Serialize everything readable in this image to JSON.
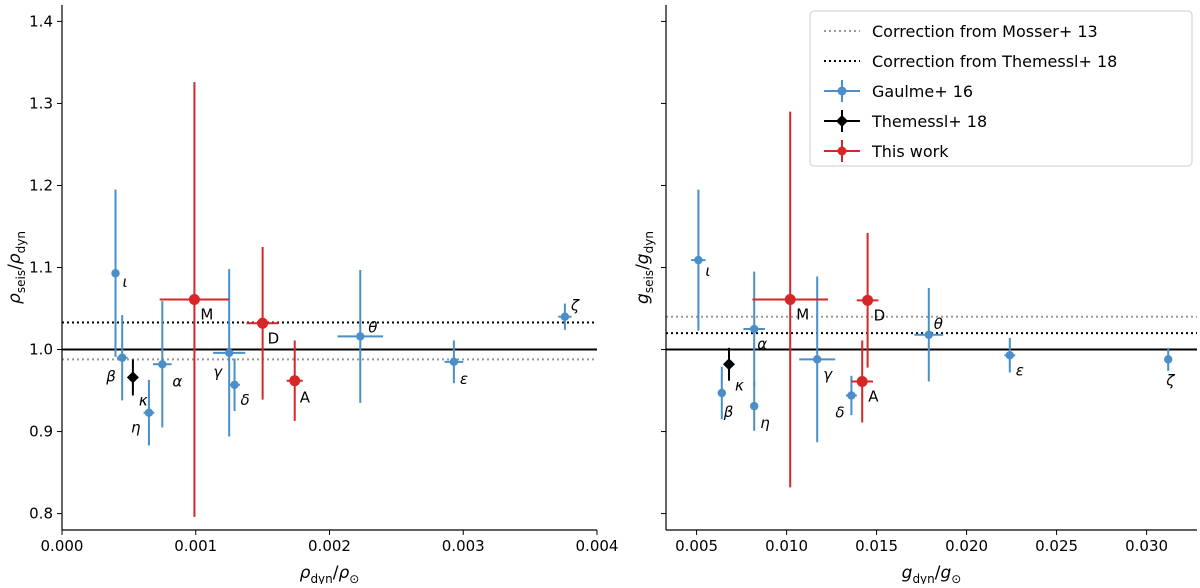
{
  "chart_data": [
    {
      "type": "scatter",
      "xlabel": "ρ_dyn/ρ_⊙",
      "ylabel": "ρ_seis/ρ_dyn",
      "xlim": [
        0.0,
        0.004
      ],
      "ylim": [
        0.78,
        1.42
      ],
      "xticks": [
        0.0,
        0.001,
        0.002,
        0.003,
        0.004
      ],
      "xtick_labels": [
        "0.000",
        "0.001",
        "0.002",
        "0.003",
        "0.004"
      ],
      "yticks": [
        0.8,
        0.9,
        1.0,
        1.1,
        1.2,
        1.3,
        1.4
      ],
      "ytick_labels": [
        "0.8",
        "0.9",
        "1.0",
        "1.1",
        "1.2",
        "1.3",
        "1.4"
      ],
      "reference_lines": [
        {
          "name": "Correction from Mosser+ 13",
          "y": 0.988,
          "color": "#999999",
          "style": "dotted"
        },
        {
          "name": "Correction from Themessl+ 18",
          "y": 1.033,
          "color": "#000000",
          "style": "dotted"
        },
        {
          "name": "unity",
          "y": 1.0,
          "color": "#000000",
          "style": "solid"
        }
      ],
      "series": [
        {
          "name": "Gaulme+ 16",
          "color": "#4a8fc9",
          "marker": "circle",
          "points": [
            {
              "label": "ι",
              "x": 0.0004,
              "xerr": 3e-05,
              "y": 1.093,
              "yerr": 0.102,
              "label_dx": 7,
              "label_dy": 14
            },
            {
              "label": "β",
              "x": 0.00045,
              "xerr": 4e-05,
              "y": 0.99,
              "yerr": 0.052,
              "label_dx": -16,
              "label_dy": 24
            },
            {
              "label": "α",
              "x": 0.00075,
              "xerr": 7e-05,
              "y": 0.982,
              "yerr": 0.077,
              "label_dx": 10,
              "label_dy": 22
            },
            {
              "label": "η",
              "x": 0.00065,
              "xerr": 4e-05,
              "y": 0.923,
              "yerr": 0.04,
              "label_dx": -18,
              "label_dy": 20
            },
            {
              "label": "γ",
              "x": 0.00125,
              "xerr": 0.00012,
              "y": 0.996,
              "yerr": 0.102,
              "label_dx": -16,
              "label_dy": 24
            },
            {
              "label": "δ",
              "x": 0.00129,
              "xerr": 4e-05,
              "y": 0.957,
              "yerr": 0.032,
              "label_dx": 6,
              "label_dy": 20
            },
            {
              "label": "θ",
              "x": 0.00223,
              "xerr": 0.00017,
              "y": 1.016,
              "yerr": 0.081,
              "label_dx": 8,
              "label_dy": -4
            },
            {
              "label": "ε",
              "x": 0.00293,
              "xerr": 7e-05,
              "y": 0.985,
              "yerr": 0.026,
              "label_dx": 6,
              "label_dy": 22
            },
            {
              "label": "ζ",
              "x": 0.00376,
              "xerr": 5e-05,
              "y": 1.04,
              "yerr": 0.016,
              "label_dx": 6,
              "label_dy": -6
            }
          ]
        },
        {
          "name": "Themessl+ 18",
          "color": "#000000",
          "marker": "diamond",
          "points": [
            {
              "label": "κ",
              "x": 0.00053,
              "xerr": 1e-05,
              "y": 0.966,
              "yerr": 0.022,
              "label_dx": 6,
              "label_dy": 28
            }
          ]
        },
        {
          "name": "This work",
          "color": "#d62728",
          "marker": "circle",
          "points": [
            {
              "label": "M",
              "x": 0.00099,
              "xerr": 0.00026,
              "y": 1.061,
              "yerr": 0.265,
              "label_dx": 6,
              "label_dy": 20
            },
            {
              "label": "D",
              "x": 0.0015,
              "xerr": 0.00012,
              "y": 1.032,
              "yerr": 0.093,
              "label_dx": 5,
              "label_dy": 20
            },
            {
              "label": "A",
              "x": 0.00174,
              "xerr": 6e-05,
              "y": 0.962,
              "yerr": 0.049,
              "label_dx": 5,
              "label_dy": 22
            }
          ]
        }
      ]
    },
    {
      "type": "scatter",
      "xlabel": "g_dyn/g_⊙",
      "ylabel": "g_seis/g_dyn",
      "xlim": [
        0.0033,
        0.0328
      ],
      "ylim": [
        0.78,
        1.42
      ],
      "xticks": [
        0.005,
        0.01,
        0.015,
        0.02,
        0.025,
        0.03
      ],
      "xtick_labels": [
        "0.005",
        "0.010",
        "0.015",
        "0.020",
        "0.025",
        "0.030"
      ],
      "yticks": [
        0.8,
        0.9,
        1.0,
        1.1,
        1.2,
        1.3,
        1.4
      ],
      "ytick_labels": [],
      "reference_lines": [
        {
          "name": "Correction from Mosser+ 13",
          "y": 1.04,
          "color": "#999999",
          "style": "dotted"
        },
        {
          "name": "Correction from Themessl+ 18",
          "y": 1.02,
          "color": "#000000",
          "style": "dotted"
        },
        {
          "name": "unity",
          "y": 1.0,
          "color": "#000000",
          "style": "solid"
        }
      ],
      "series": [
        {
          "name": "Gaulme+ 16",
          "color": "#4a8fc9",
          "marker": "circle",
          "points": [
            {
              "label": "ι",
              "x": 0.0051,
              "xerr": 0.0004,
              "y": 1.109,
              "yerr": 0.086,
              "label_dx": 7,
              "label_dy": 16
            },
            {
              "label": "β",
              "x": 0.0064,
              "xerr": 0.0002,
              "y": 0.947,
              "yerr": 0.032,
              "label_dx": 2,
              "label_dy": 24
            },
            {
              "label": "α",
              "x": 0.0082,
              "xerr": 0.0006,
              "y": 1.025,
              "yerr": 0.07,
              "label_dx": 3,
              "label_dy": 20
            },
            {
              "label": "η",
              "x": 0.0082,
              "xerr": 0.0002,
              "y": 0.931,
              "yerr": 0.03,
              "label_dx": 6,
              "label_dy": 22
            },
            {
              "label": "γ",
              "x": 0.0117,
              "xerr": 0.001,
              "y": 0.988,
              "yerr": 0.101,
              "label_dx": 6,
              "label_dy": 20
            },
            {
              "label": "δ",
              "x": 0.0136,
              "xerr": 0.0003,
              "y": 0.944,
              "yerr": 0.024,
              "label_dx": -16,
              "label_dy": 22
            },
            {
              "label": "θ",
              "x": 0.0179,
              "xerr": 0.0008,
              "y": 1.018,
              "yerr": 0.057,
              "label_dx": 5,
              "label_dy": -6
            },
            {
              "label": "ε",
              "x": 0.0224,
              "xerr": 0.0003,
              "y": 0.993,
              "yerr": 0.021,
              "label_dx": 6,
              "label_dy": 20
            },
            {
              "label": "ζ",
              "x": 0.0312,
              "xerr": 0.0002,
              "y": 0.988,
              "yerr": 0.014,
              "label_dx": -2,
              "label_dy": 26
            }
          ]
        },
        {
          "name": "Themessl+ 18",
          "color": "#000000",
          "marker": "diamond",
          "points": [
            {
              "label": "κ",
              "x": 0.0068,
              "xerr": 0.0001,
              "y": 0.982,
              "yerr": 0.02,
              "label_dx": 6,
              "label_dy": 26
            }
          ]
        },
        {
          "name": "This work",
          "color": "#d62728",
          "marker": "circle",
          "points": [
            {
              "label": "M",
              "x": 0.0102,
              "xerr": 0.0021,
              "y": 1.061,
              "yerr": 0.229,
              "label_dx": 6,
              "label_dy": 20
            },
            {
              "label": "D",
              "x": 0.0145,
              "xerr": 0.0006,
              "y": 1.06,
              "yerr": 0.082,
              "label_dx": 6,
              "label_dy": 20
            },
            {
              "label": "A",
              "x": 0.0142,
              "xerr": 0.0006,
              "y": 0.961,
              "yerr": 0.05,
              "label_dx": 6,
              "label_dy": 20
            }
          ]
        }
      ],
      "legend": {
        "position": "top-right",
        "entries": [
          {
            "label": "Correction from Mosser+ 13",
            "kind": "line",
            "color": "#999999",
            "style": "dotted"
          },
          {
            "label": "Correction from Themessl+ 18",
            "kind": "line",
            "color": "#000000",
            "style": "dotted"
          },
          {
            "label": "Gaulme+ 16",
            "kind": "marker",
            "color": "#4a8fc9",
            "marker": "circle"
          },
          {
            "label": "Themessl+ 18",
            "kind": "marker",
            "color": "#000000",
            "marker": "diamond"
          },
          {
            "label": "This work",
            "kind": "marker",
            "color": "#d62728",
            "marker": "circle"
          }
        ]
      }
    }
  ]
}
